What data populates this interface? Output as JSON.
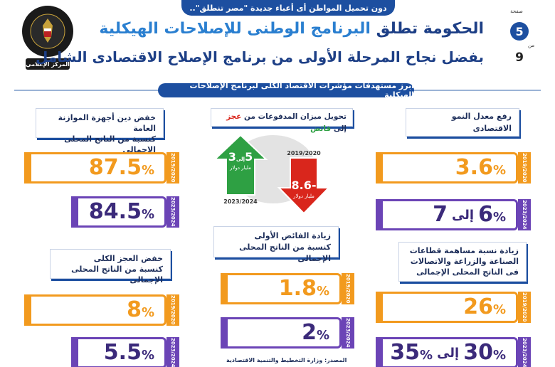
{
  "top_bar": "دون تحميل المواطن أى أعباء جديدة \"مصر تنطلق\"..",
  "logo": {
    "top_text": "جمهورية مصر العربية",
    "middle_text": "رئاسة مجلس الوزراء",
    "bottom_text": "المركز الإعلامي"
  },
  "page": {
    "label": "صفحة",
    "current": "5",
    "of": "من",
    "total": "9"
  },
  "headline": {
    "line1_part1": "الحكومة تطلق ",
    "line1_part2": "البرنامج الوطنى للإصلاحات الهيكلية",
    "line2": "بفضل نجاح المرحلة الأولى من برنامج الإصلاح الاقتصادى الشامل"
  },
  "section_label": "أبرز مستهدفات مؤشرات الاقتصاد الكلى لبرنامج الإصلاحات الهيكلية",
  "colors": {
    "navy": "#1d4fa0",
    "orange": "#f29a1e",
    "purple": "#6b44b6",
    "green": "#2ea043",
    "red": "#d9261c"
  },
  "right_column": {
    "growth": {
      "label": "رفع معدل النمو الاقتصادى",
      "y2020": "2019/2020",
      "v2020": "3.6",
      "y2024": "2023/2024",
      "v2024a": "6",
      "v2024_mid": "إلى",
      "v2024b": "7"
    },
    "sectors": {
      "label_l1": "زيادة نسبة مساهمة قطاعات",
      "label_l2": "الصناعة والزراعة والاتصالات",
      "label_l3": "فى الناتج المحلى الإجمالى",
      "y2020": "2019/2020",
      "v2020": "26",
      "y2024": "2023/2024",
      "v2024a": "30",
      "v2024_mid": "إلى",
      "v2024b": "35"
    }
  },
  "center_column": {
    "balance": {
      "label_part1": "تحويل ميزان المدفوعات من ",
      "label_deficit": "عجز",
      "label_part2": " إلى ",
      "label_surplus": "فائض",
      "red_value": "-8.6",
      "red_unit": "مليار دولار",
      "red_year": "2019/2020",
      "green_value_a": "3",
      "green_mid": "إلى",
      "green_value_b": "5",
      "green_unit": "مليار دولار",
      "green_year": "2023/2024"
    },
    "primary_surplus": {
      "label_l1": "زيادة الفائض الأولى",
      "label_l2": "كنسبة من الناتج المحلى الإجمالى",
      "y2020": "2019/2020",
      "v2020": "1.8",
      "y2024": "2023/2024",
      "v2024": "2"
    }
  },
  "left_column": {
    "debt": {
      "label_l1": "خفض دين أجهزة الموازنة العامة",
      "label_l2": "كنسبة من الناتج المحلى الإجمالى",
      "y2020": "2019/2020",
      "v2020": "87.5",
      "y2024": "2023/2024",
      "v2024": "84.5"
    },
    "deficit": {
      "label_l1": "خفض العجز الكلى",
      "label_l2": "كنسبة من الناتج المحلى الإجمالى",
      "y2020": "2019/2020",
      "v2020": "8",
      "y2024": "2023/2024",
      "v2024": "5.5"
    }
  },
  "percent_sign": "%",
  "source": "المصدر: وزارة التخطيط والتنمية الاقتصادية"
}
